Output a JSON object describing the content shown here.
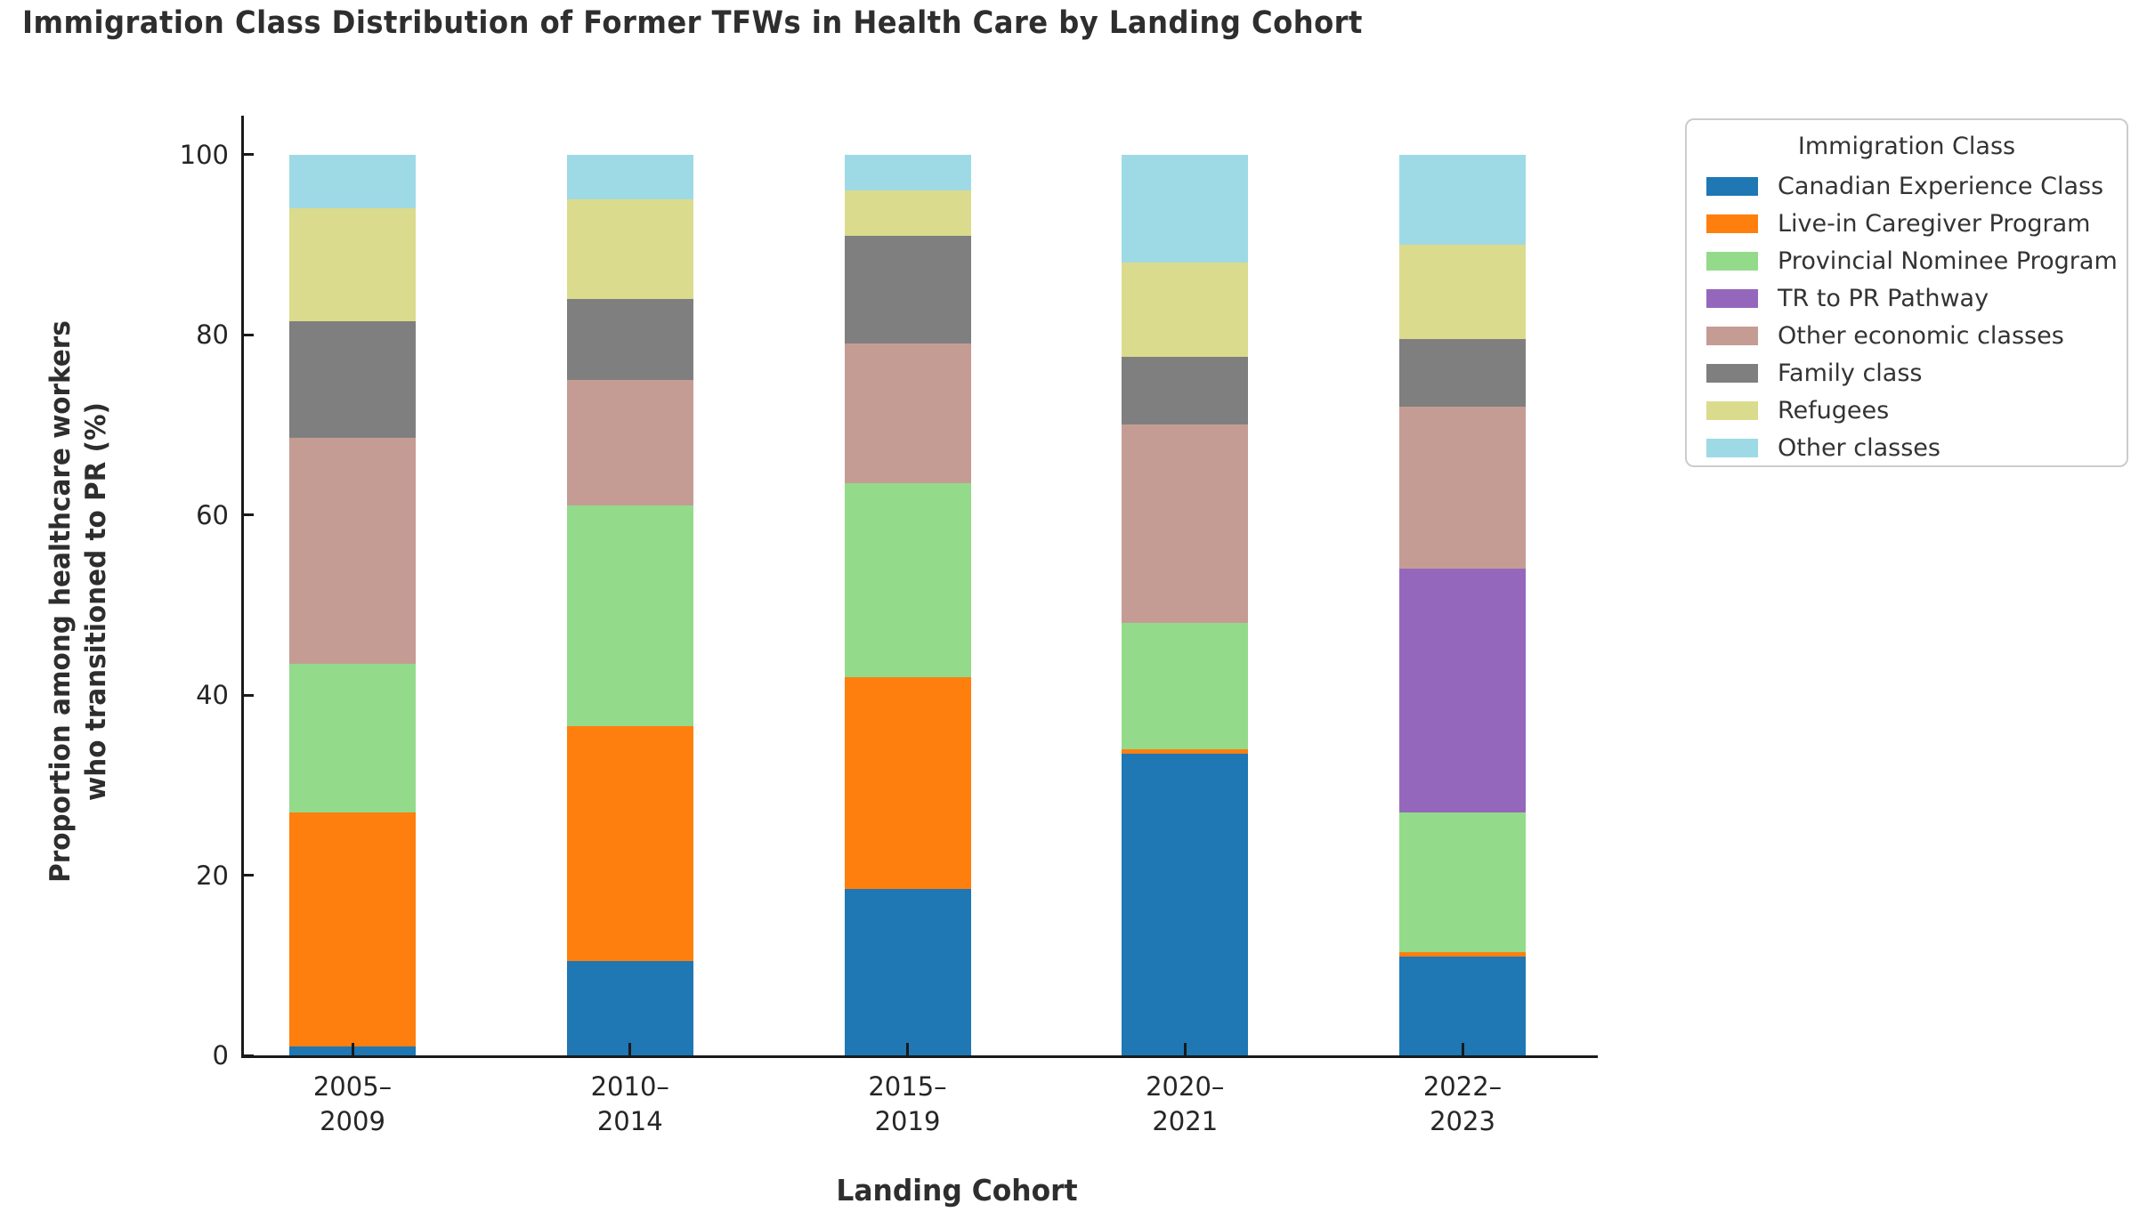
{
  "title": "Immigration Class Distribution of Former TFWs in Health Care by Landing Cohort",
  "legend": {
    "title": "Immigration Class",
    "entries": [
      {
        "label": "Canadian Experience Class",
        "color": "#1f77b4"
      },
      {
        "label": "Live-in Caregiver Program",
        "color": "#ff7f0e"
      },
      {
        "label": "Provincial Nominee Program",
        "color": "#94da8b"
      },
      {
        "label": "TR to PR Pathway",
        "color": "#9467bd"
      },
      {
        "label": "Other economic classes",
        "color": "#c49c94"
      },
      {
        "label": "Family class",
        "color": "#7f7f7f"
      },
      {
        "label": "Refugees",
        "color": "#dbdb8d"
      },
      {
        "label": "Other classes",
        "color": "#9edae5"
      }
    ]
  },
  "chart_data": {
    "type": "bar",
    "stacked": true,
    "title": "Immigration Class Distribution of Former TFWs in Health Care by Landing Cohort",
    "xlabel": "Landing Cohort",
    "ylabel_line1": "Proportion among healthcare workers",
    "ylabel_line2": "who transitioned to PR (%)",
    "categories": [
      "2005–2009",
      "2010–2014",
      "2015–2019",
      "2020–2021",
      "2022–2023"
    ],
    "category_tick_lines": [
      [
        "2005–",
        "2009"
      ],
      [
        "2010–",
        "2014"
      ],
      [
        "2015–",
        "2019"
      ],
      [
        "2020–",
        "2021"
      ],
      [
        "2022–",
        "2023"
      ]
    ],
    "series": [
      {
        "name": "Canadian Experience Class",
        "color": "#1f77b4",
        "values": [
          1,
          10.5,
          18.5,
          33.5,
          11
        ]
      },
      {
        "name": "Live-in Caregiver Program",
        "color": "#ff7f0e",
        "values": [
          26,
          26,
          23.5,
          0.5,
          0.5
        ]
      },
      {
        "name": "Provincial Nominee Program",
        "color": "#94da8b",
        "values": [
          16.5,
          24.5,
          21.5,
          14,
          15.5
        ]
      },
      {
        "name": "TR to PR Pathway",
        "color": "#9467bd",
        "values": [
          0,
          0,
          0,
          0,
          27
        ]
      },
      {
        "name": "Other economic classes",
        "color": "#c49c94",
        "values": [
          25,
          14,
          15.5,
          22,
          18
        ]
      },
      {
        "name": "Family class",
        "color": "#7f7f7f",
        "values": [
          13,
          9,
          12,
          7.5,
          7.5
        ]
      },
      {
        "name": "Refugees",
        "color": "#dbdb8d",
        "values": [
          12.5,
          11,
          5,
          10.5,
          10.5
        ]
      },
      {
        "name": "Other classes",
        "color": "#9edae5",
        "values": [
          6,
          5,
          4,
          12,
          10
        ]
      }
    ],
    "ylim": [
      0,
      100
    ],
    "yticks": [
      0,
      20,
      40,
      60,
      80,
      100
    ],
    "grid": false,
    "legend_title": "Immigration Class",
    "legend_position": "outside-upper-right"
  }
}
